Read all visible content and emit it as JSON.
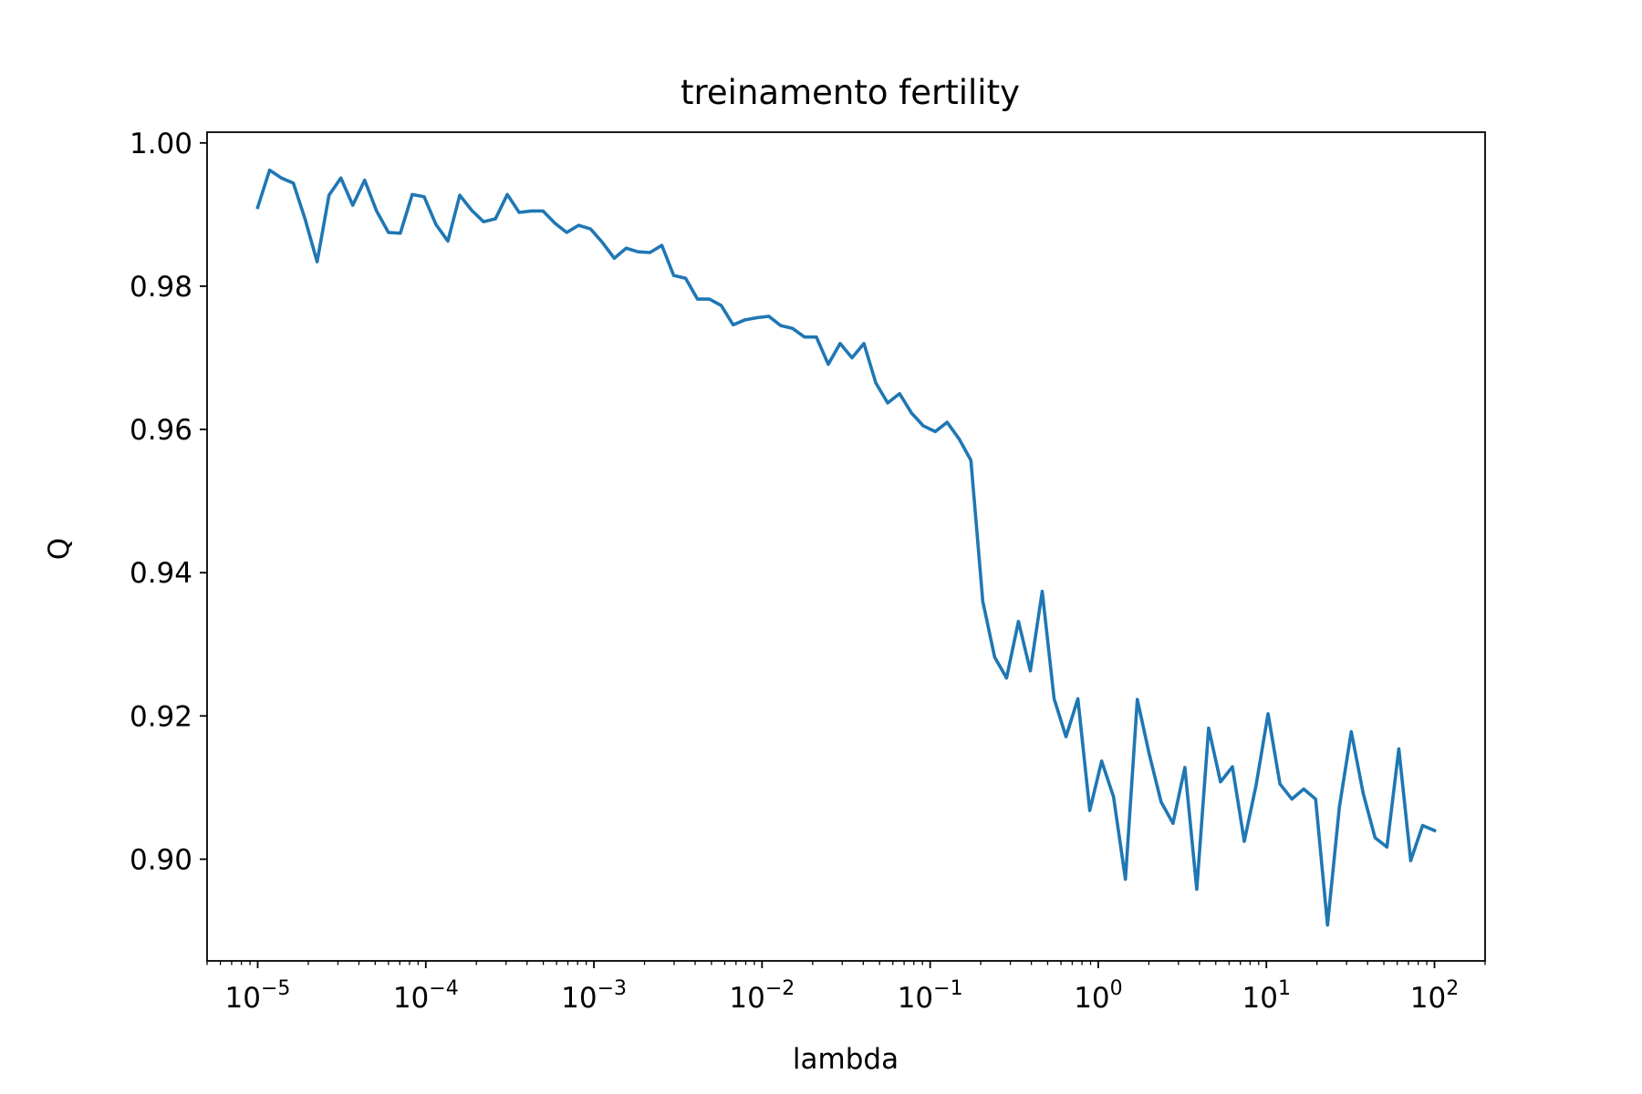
{
  "chart_data": {
    "type": "line",
    "title": "treinamento fertility",
    "xlabel": "lambda",
    "ylabel": "Q",
    "x_scale": "log",
    "xlim": [
      5e-06,
      200
    ],
    "ylim": [
      0.8858,
      1.0015
    ],
    "grid": false,
    "line_color": "#1f77b4",
    "x_ticks": [
      {
        "base": "10",
        "exp": "−5"
      },
      {
        "base": "10",
        "exp": "−4"
      },
      {
        "base": "10",
        "exp": "−3"
      },
      {
        "base": "10",
        "exp": "−2"
      },
      {
        "base": "10",
        "exp": "−1"
      },
      {
        "base": "10",
        "exp": "0"
      },
      {
        "base": "10",
        "exp": "1"
      },
      {
        "base": "10",
        "exp": "2"
      }
    ],
    "y_ticks": [
      "0.90",
      "0.92",
      "0.94",
      "0.96",
      "0.98",
      "1.00"
    ],
    "series": [
      {
        "x_log10_start": -5,
        "x_log10_end": 2,
        "values": [
          0.991,
          0.9962,
          0.9951,
          0.9944,
          0.9893,
          0.9834,
          0.9927,
          0.9951,
          0.9913,
          0.9948,
          0.9905,
          0.9875,
          0.9874,
          0.9928,
          0.9925,
          0.9886,
          0.9863,
          0.9927,
          0.9906,
          0.989,
          0.9894,
          0.9928,
          0.9903,
          0.9905,
          0.9905,
          0.9888,
          0.9875,
          0.9885,
          0.988,
          0.9861,
          0.9839,
          0.9853,
          0.9848,
          0.9847,
          0.9857,
          0.9815,
          0.9811,
          0.9782,
          0.9782,
          0.9773,
          0.9746,
          0.9753,
          0.9756,
          0.9758,
          0.9745,
          0.9741,
          0.9729,
          0.9729,
          0.9691,
          0.972,
          0.97,
          0.972,
          0.9665,
          0.9637,
          0.965,
          0.9623,
          0.9605,
          0.9597,
          0.961,
          0.9587,
          0.9557,
          0.936,
          0.9282,
          0.9253,
          0.9332,
          0.9263,
          0.9374,
          0.9224,
          0.9171,
          0.9224,
          0.9068,
          0.9137,
          0.9087,
          0.8972,
          0.9223,
          0.9147,
          0.908,
          0.905,
          0.9128,
          0.8958,
          0.9183,
          0.9108,
          0.9129,
          0.9025,
          0.9104,
          0.9203,
          0.9105,
          0.9084,
          0.9098,
          0.9084,
          0.8908,
          0.9073,
          0.9178,
          0.9092,
          0.903,
          0.9017,
          0.9154,
          0.8998,
          0.9047,
          0.904
        ]
      }
    ]
  }
}
